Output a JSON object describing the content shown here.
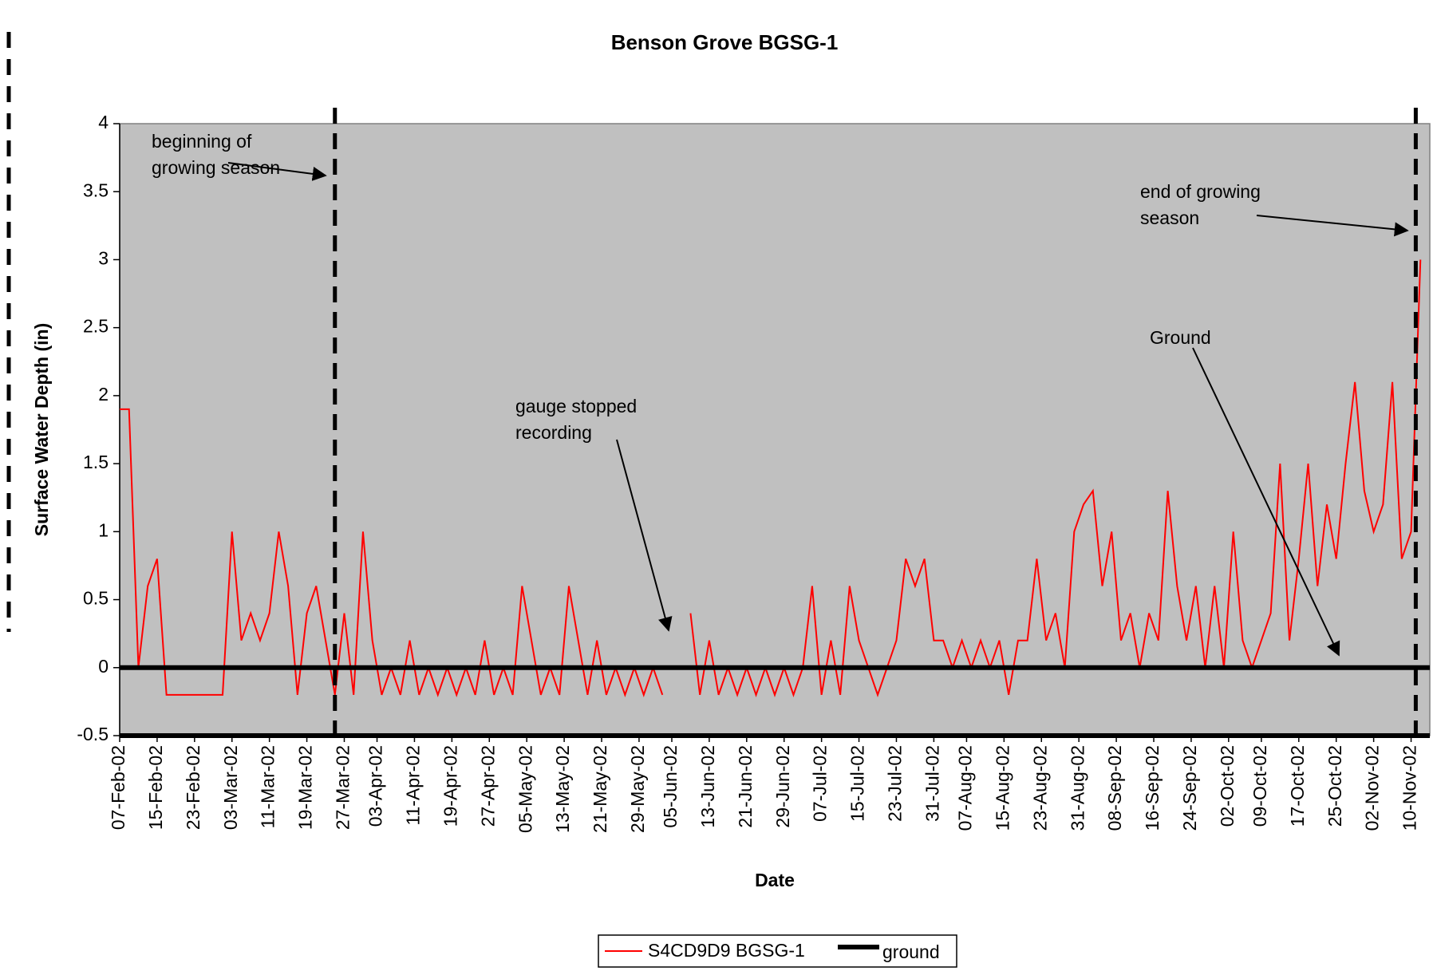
{
  "chart_data": {
    "type": "line",
    "title": "Benson Grove BGSG-1",
    "x_label": "Date",
    "y_label": "Surface Water Depth (in)",
    "x": [
      "2002-02-07",
      "2002-02-09",
      "2002-02-11",
      "2002-02-13",
      "2002-02-15",
      "2002-02-17",
      "2002-02-19",
      "2002-02-21",
      "2002-02-23",
      "2002-02-25",
      "2002-02-27",
      "2002-03-01",
      "2002-03-03",
      "2002-03-05",
      "2002-03-07",
      "2002-03-09",
      "2002-03-11",
      "2002-03-13",
      "2002-03-15",
      "2002-03-17",
      "2002-03-19",
      "2002-03-21",
      "2002-03-23",
      "2002-03-25",
      "2002-03-27",
      "2002-03-29",
      "2002-03-31",
      "2002-04-02",
      "2002-04-04",
      "2002-04-06",
      "2002-04-08",
      "2002-04-10",
      "2002-04-12",
      "2002-04-14",
      "2002-04-16",
      "2002-04-18",
      "2002-04-20",
      "2002-04-22",
      "2002-04-24",
      "2002-04-26",
      "2002-04-28",
      "2002-04-30",
      "2002-05-02",
      "2002-05-04",
      "2002-05-06",
      "2002-05-08",
      "2002-05-10",
      "2002-05-12",
      "2002-05-14",
      "2002-05-16",
      "2002-05-18",
      "2002-05-20",
      "2002-05-22",
      "2002-05-24",
      "2002-05-26",
      "2002-05-28",
      "2002-05-30",
      "2002-06-01",
      "2002-06-03",
      "2002-06-05",
      "2002-06-07",
      "2002-06-09",
      "2002-06-11",
      "2002-06-13",
      "2002-06-15",
      "2002-06-17",
      "2002-06-19",
      "2002-06-21",
      "2002-06-23",
      "2002-06-25",
      "2002-06-27",
      "2002-06-29",
      "2002-07-01",
      "2002-07-03",
      "2002-07-05",
      "2002-07-07",
      "2002-07-09",
      "2002-07-11",
      "2002-07-13",
      "2002-07-15",
      "2002-07-17",
      "2002-07-19",
      "2002-07-21",
      "2002-07-23",
      "2002-07-25",
      "2002-07-27",
      "2002-07-29",
      "2002-07-31",
      "2002-08-02",
      "2002-08-04",
      "2002-08-06",
      "2002-08-08",
      "2002-08-10",
      "2002-08-12",
      "2002-08-14",
      "2002-08-16",
      "2002-08-18",
      "2002-08-20",
      "2002-08-22",
      "2002-08-24",
      "2002-08-26",
      "2002-08-28",
      "2002-08-30",
      "2002-09-01",
      "2002-09-03",
      "2002-09-05",
      "2002-09-07",
      "2002-09-09",
      "2002-09-11",
      "2002-09-13",
      "2002-09-15",
      "2002-09-17",
      "2002-09-19",
      "2002-09-21",
      "2002-09-23",
      "2002-09-25",
      "2002-09-27",
      "2002-09-29",
      "2002-10-01",
      "2002-10-03",
      "2002-10-05",
      "2002-10-07",
      "2002-10-09",
      "2002-10-11",
      "2002-10-13",
      "2002-10-15",
      "2002-10-17",
      "2002-10-19",
      "2002-10-21",
      "2002-10-23",
      "2002-10-25",
      "2002-10-27",
      "2002-10-29",
      "2002-10-31",
      "2002-11-02",
      "2002-11-04",
      "2002-11-06",
      "2002-11-08",
      "2002-11-10",
      "2002-11-12"
    ],
    "series": [
      {
        "name": "S4CD9D9 BGSG-1",
        "color": "#ff0000",
        "values": [
          1.9,
          1.9,
          0,
          0.6,
          0.8,
          -0.2,
          -0.2,
          -0.2,
          -0.2,
          -0.2,
          -0.2,
          -0.2,
          1.0,
          0.2,
          0.4,
          0.2,
          0.4,
          1.0,
          0.6,
          -0.2,
          0.4,
          0.6,
          0.2,
          -0.2,
          0.4,
          -0.2,
          1.0,
          0.2,
          -0.2,
          0,
          -0.2,
          0.2,
          -0.2,
          0,
          -0.2,
          0,
          -0.2,
          0,
          -0.2,
          0.2,
          -0.2,
          0,
          -0.2,
          0.6,
          0.2,
          -0.2,
          0,
          -0.2,
          0.6,
          0.2,
          -0.2,
          0.2,
          -0.2,
          0,
          -0.2,
          0,
          -0.2,
          0,
          -0.2,
          null,
          null,
          0.4,
          -0.2,
          0.2,
          -0.2,
          0,
          -0.2,
          0,
          -0.2,
          0,
          -0.2,
          0,
          -0.2,
          0,
          0.6,
          -0.2,
          0.2,
          -0.2,
          0.6,
          0.2,
          0,
          -0.2,
          0,
          0.2,
          0.8,
          0.6,
          0.8,
          0.2,
          0.2,
          0,
          0.2,
          0,
          0.2,
          0,
          0.2,
          -0.2,
          0.2,
          0.2,
          0.8,
          0.2,
          0.4,
          0,
          1.0,
          1.2,
          1.3,
          0.6,
          1.0,
          0.2,
          0.4,
          0,
          0.4,
          0.2,
          1.3,
          0.6,
          0.2,
          0.6,
          0,
          0.6,
          0,
          1.0,
          0.2,
          0,
          0.2,
          0.4,
          1.5,
          0.2,
          0.8,
          1.5,
          0.6,
          1.2,
          0.8,
          1.5,
          2.1,
          1.3,
          1.0,
          1.2,
          2.1,
          0.8,
          1.0,
          3.0
        ]
      },
      {
        "name": "ground",
        "color": "#000000",
        "x": [
          "2002-02-07",
          "2002-11-14"
        ],
        "values": [
          0,
          0
        ]
      }
    ],
    "xlim": [
      "2002-02-07",
      "2002-11-14"
    ],
    "xticks": [
      {
        "value": "2002-02-07",
        "label": "07-Feb-02"
      },
      {
        "value": "2002-02-15",
        "label": "15-Feb-02"
      },
      {
        "value": "2002-02-23",
        "label": "23-Feb-02"
      },
      {
        "value": "2002-03-03",
        "label": "03-Mar-02"
      },
      {
        "value": "2002-03-11",
        "label": "11-Mar-02"
      },
      {
        "value": "2002-03-19",
        "label": "19-Mar-02"
      },
      {
        "value": "2002-03-27",
        "label": "27-Mar-02"
      },
      {
        "value": "2002-04-03",
        "label": "03-Apr-02"
      },
      {
        "value": "2002-04-11",
        "label": "11-Apr-02"
      },
      {
        "value": "2002-04-19",
        "label": "19-Apr-02"
      },
      {
        "value": "2002-04-27",
        "label": "27-Apr-02"
      },
      {
        "value": "2002-05-05",
        "label": "05-May-02"
      },
      {
        "value": "2002-05-13",
        "label": "13-May-02"
      },
      {
        "value": "2002-05-21",
        "label": "21-May-02"
      },
      {
        "value": "2002-05-29",
        "label": "29-May-02"
      },
      {
        "value": "2002-06-05",
        "label": "05-Jun-02"
      },
      {
        "value": "2002-06-13",
        "label": "13-Jun-02"
      },
      {
        "value": "2002-06-21",
        "label": "21-Jun-02"
      },
      {
        "value": "2002-06-29",
        "label": "29-Jun-02"
      },
      {
        "value": "2002-07-07",
        "label": "07-Jul-02"
      },
      {
        "value": "2002-07-15",
        "label": "15-Jul-02"
      },
      {
        "value": "2002-07-23",
        "label": "23-Jul-02"
      },
      {
        "value": "2002-07-31",
        "label": "31-Jul-02"
      },
      {
        "value": "2002-08-07",
        "label": "07-Aug-02"
      },
      {
        "value": "2002-08-15",
        "label": "15-Aug-02"
      },
      {
        "value": "2002-08-23",
        "label": "23-Aug-02"
      },
      {
        "value": "2002-08-31",
        "label": "31-Aug-02"
      },
      {
        "value": "2002-09-08",
        "label": "08-Sep-02"
      },
      {
        "value": "2002-09-16",
        "label": "16-Sep-02"
      },
      {
        "value": "2002-09-24",
        "label": "24-Sep-02"
      },
      {
        "value": "2002-10-02",
        "label": "02-Oct-02"
      },
      {
        "value": "2002-10-09",
        "label": "09-Oct-02"
      },
      {
        "value": "2002-10-17",
        "label": "17-Oct-02"
      },
      {
        "value": "2002-10-25",
        "label": "25-Oct-02"
      },
      {
        "value": "2002-11-02",
        "label": "02-Nov-02"
      },
      {
        "value": "2002-11-10",
        "label": "10-Nov-02"
      }
    ],
    "ylim": [
      -0.5,
      4
    ],
    "yticks": [
      -0.5,
      0,
      0.5,
      1,
      1.5,
      2,
      2.5,
      3,
      3.5,
      4
    ],
    "grid": false,
    "plot_background": "#c0c0c0",
    "markers": [
      {
        "x": "2002-03-25",
        "color": "#000000"
      },
      {
        "x": "2002-11-11",
        "color": "#000000"
      }
    ],
    "annotations": [
      {
        "text": [
          "beginning of",
          "growing season"
        ]
      },
      {
        "text": [
          "end of growing",
          "season"
        ]
      },
      {
        "text": [
          "Ground"
        ]
      },
      {
        "text": [
          "gauge stopped",
          "recording"
        ]
      }
    ],
    "legend": "bottom"
  }
}
